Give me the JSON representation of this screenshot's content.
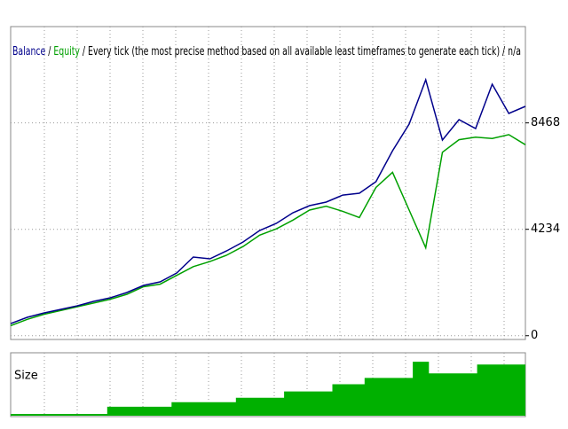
{
  "chart_data": [
    {
      "type": "line",
      "title": "Every tick (the most precise method based on all available least timeframes to generate each tick) / n/a",
      "separator": "/",
      "series": [
        {
          "name": "Balance",
          "color": "#00008b",
          "values": [
            483,
            730,
            906,
            1047,
            1188,
            1365,
            1506,
            1718,
            2000,
            2141,
            2494,
            3129,
            3058,
            3375,
            3728,
            4187,
            4469,
            4892,
            5174,
            5315,
            5597,
            5668,
            6127,
            7360,
            8419,
            10185,
            7785,
            8596,
            8243,
            10006,
            8842,
            9125
          ]
        },
        {
          "name": "Equity",
          "color": "#00a000",
          "values": [
            400,
            650,
            850,
            1000,
            1150,
            1300,
            1450,
            1650,
            1950,
            2050,
            2400,
            2750,
            2950,
            3200,
            3550,
            4000,
            4250,
            4600,
            5000,
            5150,
            4950,
            4700,
            5900,
            6500,
            5000,
            3500,
            7300,
            7800,
            7900,
            7850,
            8000,
            7600
          ]
        }
      ],
      "ylim": [
        -150,
        12300
      ],
      "yticks": [
        0,
        4234,
        8468
      ],
      "grid": true
    },
    {
      "type": "step-area",
      "title": "Size",
      "color": "#00b000",
      "values": [
        2,
        2,
        2,
        2,
        2,
        2,
        10,
        10,
        10,
        10,
        15,
        15,
        15,
        15,
        20,
        20,
        20,
        27,
        27,
        27,
        35,
        35,
        42,
        42,
        42,
        60,
        47,
        47,
        47,
        57,
        57,
        57
      ],
      "ylim": [
        0,
        70
      ]
    }
  ]
}
